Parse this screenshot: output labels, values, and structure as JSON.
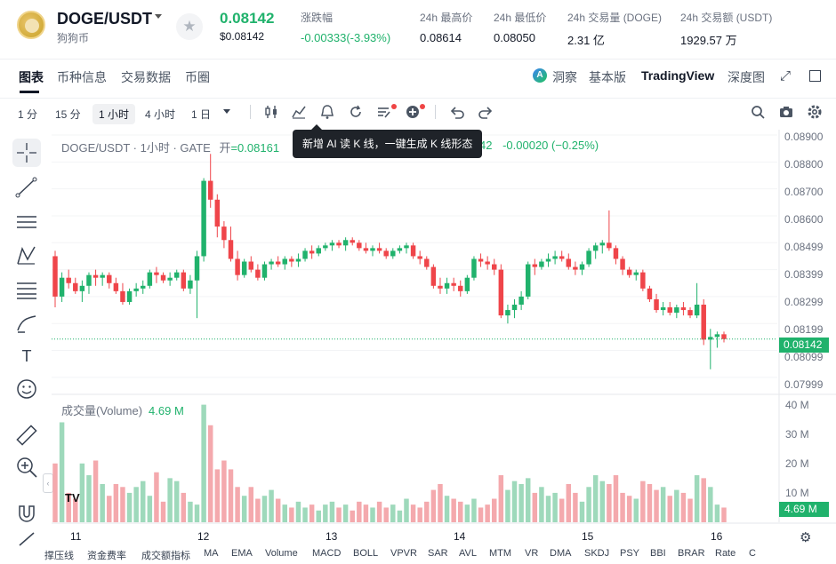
{
  "ticker": {
    "pair": "DOGE/USDT",
    "coin_name": "狗狗币",
    "last_price": "0.08142",
    "last_price_usd": "$0.08142",
    "change_label": "涨跌幅",
    "change_value": "-0.00333(-3.93%)",
    "high_label": "24h 最高价",
    "high_value": "0.08614",
    "low_label": "24h 最低价",
    "low_value": "0.08050",
    "vol_label": "24h 交易量 (DOGE)",
    "vol_value": "2.31 亿",
    "amount_label": "24h 交易额 (USDT)",
    "amount_value": "1929.57 万",
    "star_icon": "star-icon",
    "caret_icon": "chevron-down-icon"
  },
  "tabs": {
    "left": [
      "图表",
      "币种信息",
      "交易数据",
      "币圈"
    ],
    "right": [
      "洞察",
      "基本版",
      "TradingView",
      "深度图"
    ],
    "ai_glyph": "A"
  },
  "toolbar": {
    "timeframes": [
      "1 分",
      "15 分",
      "1 小时",
      "4 小时",
      "1 日"
    ],
    "active_timeframe": "1 小时",
    "icons": [
      "candles-icon",
      "indicator-icon",
      "alert-icon",
      "replay-icon",
      "ai-read-icon",
      "add-icon",
      "undo-icon",
      "redo-icon",
      "search-icon",
      "camera-icon",
      "settings-icon"
    ]
  },
  "tooltip": {
    "text": "新增 AI 读 K 线，一键生成 K 线形态"
  },
  "legend": {
    "symbol": "DOGE/USDT · 1小时 · GATE",
    "open_label": "开",
    "open_value": "=0.08161",
    "tail_value": "42",
    "change": "-0.00020 (−0.25%)"
  },
  "volume_legend": {
    "label": "成交量(Volume)",
    "value": "4.69 M"
  },
  "price_axis": [
    "0.08900",
    "0.08800",
    "0.08700",
    "0.08600",
    "0.08499",
    "0.08399",
    "0.08299",
    "0.08199",
    "0.08099",
    "0.07999"
  ],
  "current_price_tag": "0.08142",
  "volume_axis": [
    "40 M",
    "30 M",
    "20 M",
    "10 M"
  ],
  "current_volume_tag": "4.69 M",
  "x_axis": [
    "11",
    "12",
    "13",
    "14",
    "15",
    "16"
  ],
  "tv_logo": "TV",
  "indicators": [
    "撑压线",
    "资金费率",
    "成交额指标",
    "MA",
    "EMA",
    "Volume",
    "MACD",
    "BOLL",
    "VPVR",
    "SAR",
    "AVL",
    "MTM",
    "VR",
    "DMA",
    "SKDJ",
    "PSY",
    "BBI",
    "BRAR",
    "Rate",
    "C"
  ],
  "colors": {
    "up": "#20b26c",
    "down": "#ef454a",
    "up_volume": "#9ed9bb",
    "down_volume": "#f4a9ad",
    "accent": "#20b26c"
  },
  "chart_data": {
    "type": "candlestick",
    "interval": "1h",
    "y_range": [
      0.0795,
      0.0892
    ],
    "volume_range_m": [
      0,
      42
    ],
    "current_price": 0.08142,
    "x_day_labels": [
      "11",
      "12",
      "13",
      "14",
      "15",
      "16"
    ],
    "candles": [
      [
        0.0845,
        0.0847,
        0.0826,
        0.083,
        20
      ],
      [
        0.083,
        0.0839,
        0.0828,
        0.0837,
        34
      ],
      [
        0.0837,
        0.084,
        0.0833,
        0.0835,
        10
      ],
      [
        0.0835,
        0.0837,
        0.0831,
        0.0832,
        8
      ],
      [
        0.0832,
        0.0836,
        0.0828,
        0.0834,
        20
      ],
      [
        0.0834,
        0.0839,
        0.0831,
        0.0838,
        16
      ],
      [
        0.0838,
        0.084,
        0.0834,
        0.0837,
        21
      ],
      [
        0.0837,
        0.0839,
        0.0834,
        0.0838,
        13
      ],
      [
        0.0838,
        0.0839,
        0.0833,
        0.0835,
        9
      ],
      [
        0.0835,
        0.0837,
        0.0831,
        0.0832,
        13
      ],
      [
        0.0832,
        0.0835,
        0.0827,
        0.0828,
        12
      ],
      [
        0.0828,
        0.0833,
        0.0827,
        0.0832,
        10
      ],
      [
        0.0832,
        0.0835,
        0.083,
        0.0833,
        12
      ],
      [
        0.0833,
        0.0836,
        0.0831,
        0.0834,
        14
      ],
      [
        0.0834,
        0.084,
        0.0833,
        0.0839,
        9
      ],
      [
        0.0839,
        0.0841,
        0.0835,
        0.0838,
        17
      ],
      [
        0.0838,
        0.0839,
        0.0835,
        0.0836,
        7
      ],
      [
        0.0836,
        0.0839,
        0.0834,
        0.0837,
        15
      ],
      [
        0.0837,
        0.084,
        0.0836,
        0.0839,
        14
      ],
      [
        0.0839,
        0.084,
        0.0832,
        0.0833,
        10
      ],
      [
        0.0833,
        0.0838,
        0.0831,
        0.0836,
        7
      ],
      [
        0.0836,
        0.0847,
        0.0822,
        0.0845,
        6
      ],
      [
        0.0845,
        0.0874,
        0.0843,
        0.0873,
        40
      ],
      [
        0.0873,
        0.0883,
        0.0863,
        0.0866,
        33
      ],
      [
        0.0866,
        0.0868,
        0.0852,
        0.0856,
        18
      ],
      [
        0.0856,
        0.0858,
        0.0848,
        0.0851,
        21
      ],
      [
        0.0851,
        0.0856,
        0.0843,
        0.0844,
        18
      ],
      [
        0.0844,
        0.0847,
        0.0836,
        0.0838,
        12
      ],
      [
        0.0838,
        0.0844,
        0.0837,
        0.0843,
        9
      ],
      [
        0.0843,
        0.0845,
        0.0839,
        0.084,
        12
      ],
      [
        0.084,
        0.0842,
        0.0836,
        0.0837,
        8
      ],
      [
        0.0837,
        0.0843,
        0.0836,
        0.0842,
        9
      ],
      [
        0.0842,
        0.0844,
        0.084,
        0.0843,
        11
      ],
      [
        0.0843,
        0.0845,
        0.0841,
        0.0842,
        8
      ],
      [
        0.0842,
        0.0845,
        0.084,
        0.0844,
        6
      ],
      [
        0.0844,
        0.0845,
        0.0841,
        0.0843,
        5
      ],
      [
        0.0843,
        0.0846,
        0.0841,
        0.0844,
        7
      ],
      [
        0.0844,
        0.0848,
        0.0843,
        0.0847,
        5
      ],
      [
        0.0847,
        0.0849,
        0.0844,
        0.0846,
        6
      ],
      [
        0.0846,
        0.0849,
        0.0845,
        0.0848,
        4
      ],
      [
        0.0848,
        0.085,
        0.0847,
        0.0849,
        6
      ],
      [
        0.0849,
        0.0851,
        0.0847,
        0.085,
        7
      ],
      [
        0.085,
        0.0851,
        0.0848,
        0.0849,
        5
      ],
      [
        0.0849,
        0.0852,
        0.0847,
        0.0851,
        6
      ],
      [
        0.0851,
        0.0852,
        0.0849,
        0.085,
        4
      ],
      [
        0.085,
        0.0851,
        0.0847,
        0.0848,
        7
      ],
      [
        0.0848,
        0.085,
        0.0846,
        0.0847,
        6
      ],
      [
        0.0847,
        0.0849,
        0.0845,
        0.0848,
        5
      ],
      [
        0.0848,
        0.085,
        0.0846,
        0.0847,
        7
      ],
      [
        0.0847,
        0.0848,
        0.0844,
        0.0845,
        5
      ],
      [
        0.0845,
        0.0848,
        0.0844,
        0.0847,
        6
      ],
      [
        0.0847,
        0.0849,
        0.0846,
        0.0848,
        4
      ],
      [
        0.0848,
        0.085,
        0.0846,
        0.0849,
        8
      ],
      [
        0.0849,
        0.085,
        0.0844,
        0.0845,
        6
      ],
      [
        0.0845,
        0.0847,
        0.0842,
        0.0844,
        5
      ],
      [
        0.0844,
        0.0845,
        0.084,
        0.0841,
        7
      ],
      [
        0.0841,
        0.0842,
        0.0833,
        0.0834,
        11
      ],
      [
        0.0834,
        0.0837,
        0.0831,
        0.0833,
        13
      ],
      [
        0.0833,
        0.0837,
        0.0831,
        0.0835,
        9
      ],
      [
        0.0835,
        0.0837,
        0.0832,
        0.0834,
        8
      ],
      [
        0.0834,
        0.0836,
        0.083,
        0.0832,
        7
      ],
      [
        0.0832,
        0.0838,
        0.0831,
        0.0837,
        6
      ],
      [
        0.0837,
        0.0845,
        0.0836,
        0.0844,
        8
      ],
      [
        0.0844,
        0.0846,
        0.0841,
        0.0843,
        5
      ],
      [
        0.0843,
        0.0845,
        0.084,
        0.0842,
        6
      ],
      [
        0.0842,
        0.0844,
        0.0838,
        0.084,
        8
      ],
      [
        0.084,
        0.0842,
        0.0822,
        0.0823,
        16
      ],
      [
        0.0823,
        0.0827,
        0.082,
        0.0825,
        11
      ],
      [
        0.0825,
        0.0829,
        0.0822,
        0.0827,
        14
      ],
      [
        0.0827,
        0.0832,
        0.0825,
        0.083,
        13
      ],
      [
        0.083,
        0.0843,
        0.0829,
        0.0842,
        15
      ],
      [
        0.0842,
        0.0844,
        0.0838,
        0.0841,
        10
      ],
      [
        0.0841,
        0.0844,
        0.084,
        0.0843,
        12
      ],
      [
        0.0843,
        0.0846,
        0.0841,
        0.0844,
        9
      ],
      [
        0.0844,
        0.0847,
        0.0842,
        0.0845,
        10
      ],
      [
        0.0845,
        0.0847,
        0.0843,
        0.0844,
        8
      ],
      [
        0.0844,
        0.0846,
        0.084,
        0.0841,
        13
      ],
      [
        0.0841,
        0.0843,
        0.0838,
        0.084,
        10
      ],
      [
        0.084,
        0.0843,
        0.0838,
        0.0842,
        7
      ],
      [
        0.0842,
        0.0848,
        0.0841,
        0.0847,
        12
      ],
      [
        0.0847,
        0.085,
        0.0844,
        0.0849,
        16
      ],
      [
        0.0849,
        0.0851,
        0.0846,
        0.085,
        14
      ],
      [
        0.085,
        0.0862,
        0.0847,
        0.0848,
        13
      ],
      [
        0.0848,
        0.0849,
        0.0842,
        0.0844,
        16
      ],
      [
        0.0844,
        0.0845,
        0.0838,
        0.084,
        10
      ],
      [
        0.084,
        0.0841,
        0.0837,
        0.0838,
        9
      ],
      [
        0.0838,
        0.084,
        0.0836,
        0.0839,
        8
      ],
      [
        0.0839,
        0.084,
        0.0832,
        0.0833,
        14
      ],
      [
        0.0833,
        0.0834,
        0.0828,
        0.0829,
        13
      ],
      [
        0.0829,
        0.0831,
        0.0824,
        0.0825,
        11
      ],
      [
        0.0825,
        0.0828,
        0.0823,
        0.0826,
        12
      ],
      [
        0.0826,
        0.0828,
        0.0823,
        0.0824,
        9
      ],
      [
        0.0824,
        0.0827,
        0.0822,
        0.0826,
        11
      ],
      [
        0.0826,
        0.0828,
        0.0823,
        0.0825,
        10
      ],
      [
        0.0825,
        0.0826,
        0.0822,
        0.0823,
        8
      ],
      [
        0.0823,
        0.0835,
        0.0822,
        0.0827,
        16
      ],
      [
        0.0827,
        0.0829,
        0.0812,
        0.0814,
        15
      ],
      [
        0.0814,
        0.0818,
        0.0803,
        0.0815,
        12
      ],
      [
        0.0815,
        0.0817,
        0.0811,
        0.0816,
        6
      ],
      [
        0.0816,
        0.0817,
        0.0813,
        0.08142,
        5
      ]
    ]
  }
}
